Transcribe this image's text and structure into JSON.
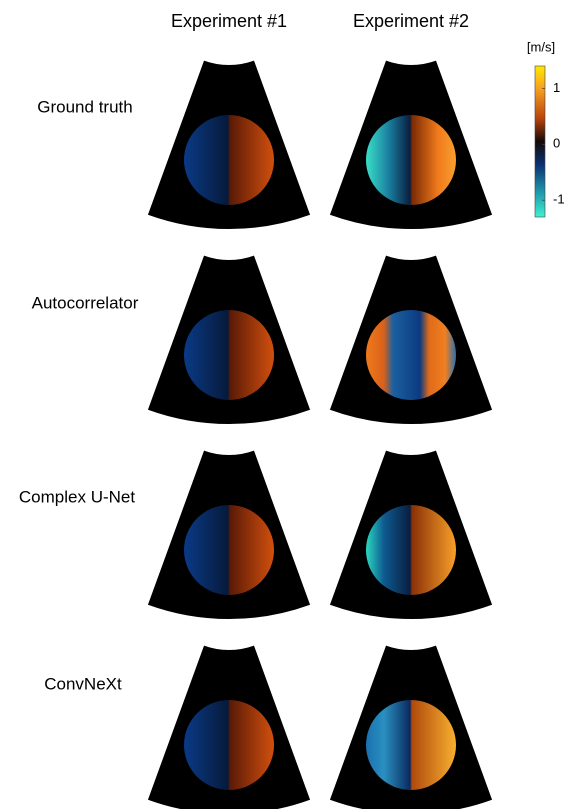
{
  "columns": [
    "Experiment #1",
    "Experiment #2"
  ],
  "rows": [
    "Ground truth",
    "Autocorrelator",
    "Complex U-Net",
    "ConvNeXt"
  ],
  "colorbar": {
    "unit": "[m/s]",
    "lim": [
      -1.3,
      1.4
    ],
    "ticks": [
      1,
      0,
      -1
    ]
  }
}
